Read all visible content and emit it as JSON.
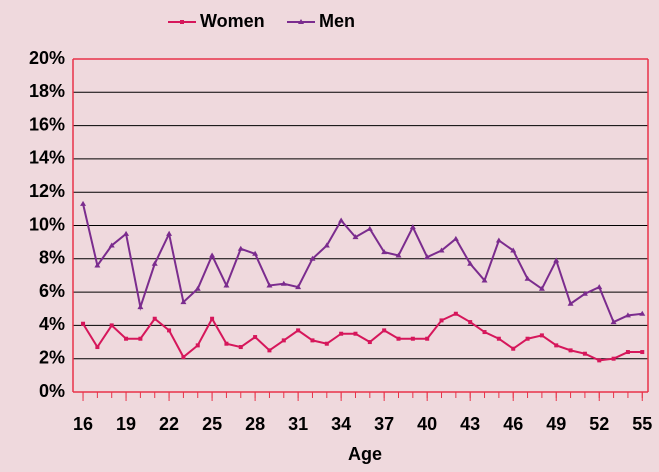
{
  "chart_data": {
    "type": "line",
    "x_label": "Age",
    "x": [
      16,
      17,
      18,
      19,
      20,
      21,
      22,
      23,
      24,
      25,
      26,
      27,
      28,
      29,
      30,
      31,
      32,
      33,
      34,
      35,
      36,
      37,
      38,
      39,
      40,
      41,
      42,
      43,
      44,
      45,
      46,
      47,
      48,
      49,
      50,
      51,
      52,
      53,
      54,
      55
    ],
    "xlim": [
      15.3,
      55.4
    ],
    "xticks": [
      16,
      19,
      22,
      25,
      28,
      31,
      34,
      37,
      40,
      43,
      46,
      49,
      52,
      55
    ],
    "ylim": [
      0,
      20
    ],
    "yticks": [
      {
        "value": 0,
        "label": "0%"
      },
      {
        "value": 2,
        "label": "2%"
      },
      {
        "value": 4,
        "label": "4%"
      },
      {
        "value": 6,
        "label": "6%"
      },
      {
        "value": 8,
        "label": "8%"
      },
      {
        "value": 10,
        "label": "10%"
      },
      {
        "value": 12,
        "label": "12%"
      },
      {
        "value": 14,
        "label": "14%"
      },
      {
        "value": 16,
        "label": "16%"
      },
      {
        "value": 18,
        "label": "18%"
      },
      {
        "value": 20,
        "label": "20%"
      }
    ],
    "grid": true,
    "legend": "top",
    "series": [
      {
        "name": "Women",
        "color": "#d6175b",
        "values": [
          4.1,
          2.7,
          4.0,
          3.2,
          3.2,
          4.4,
          3.7,
          2.1,
          2.8,
          4.4,
          2.9,
          2.7,
          3.3,
          2.5,
          3.1,
          3.7,
          3.1,
          2.9,
          3.5,
          3.5,
          3.0,
          3.7,
          3.2,
          3.2,
          3.2,
          4.3,
          4.7,
          4.2,
          3.6,
          3.2,
          2.6,
          3.2,
          3.4,
          2.8,
          2.5,
          2.3,
          1.9,
          2.0,
          2.4,
          2.4
        ]
      },
      {
        "name": "Men",
        "color": "#7b2c8e",
        "values": [
          11.3,
          7.6,
          8.8,
          9.5,
          5.1,
          7.7,
          9.5,
          5.4,
          6.2,
          8.2,
          6.4,
          8.6,
          8.3,
          6.4,
          6.5,
          6.3,
          8.0,
          8.8,
          10.3,
          9.3,
          9.8,
          8.4,
          8.2,
          9.9,
          8.1,
          8.5,
          9.2,
          7.7,
          6.7,
          9.1,
          8.5,
          6.8,
          6.2,
          7.9,
          5.3,
          5.9,
          6.3,
          4.2,
          4.6,
          4.7
        ]
      }
    ]
  }
}
